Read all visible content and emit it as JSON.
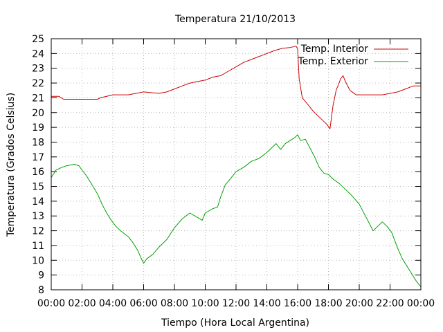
{
  "chart_data": {
    "type": "line",
    "title": "Temperatura 21/10/2013",
    "xlabel": "Tiempo (Hora Local Argentina)",
    "ylabel": "Temperatura (Grados Celsius)",
    "xlim": [
      0,
      24
    ],
    "ylim": [
      8,
      25
    ],
    "x_ticks": [
      "00:00",
      "02:00",
      "04:00",
      "06:00",
      "08:00",
      "10:00",
      "12:00",
      "14:00",
      "16:00",
      "18:00",
      "20:00",
      "22:00",
      "00:00"
    ],
    "y_ticks": [
      8,
      9,
      10,
      11,
      12,
      13,
      14,
      15,
      16,
      17,
      18,
      19,
      20,
      21,
      22,
      23,
      24,
      25
    ],
    "grid": true,
    "legend_position": "top-right",
    "series": [
      {
        "name": "Temp. Interior",
        "color": "#cc0000",
        "points": [
          [
            0.0,
            21.1
          ],
          [
            0.5,
            21.1
          ],
          [
            0.8,
            20.9
          ],
          [
            2.0,
            20.9
          ],
          [
            3.0,
            20.9
          ],
          [
            3.2,
            21.0
          ],
          [
            4.0,
            21.2
          ],
          [
            5.0,
            21.2
          ],
          [
            5.5,
            21.3
          ],
          [
            6.0,
            21.4
          ],
          [
            7.0,
            21.3
          ],
          [
            7.5,
            21.4
          ],
          [
            8.0,
            21.6
          ],
          [
            8.5,
            21.8
          ],
          [
            9.0,
            22.0
          ],
          [
            9.5,
            22.1
          ],
          [
            10.0,
            22.2
          ],
          [
            10.5,
            22.4
          ],
          [
            11.0,
            22.5
          ],
          [
            11.5,
            22.8
          ],
          [
            12.0,
            23.1
          ],
          [
            12.5,
            23.4
          ],
          [
            13.0,
            23.6
          ],
          [
            13.5,
            23.8
          ],
          [
            14.0,
            24.0
          ],
          [
            14.5,
            24.2
          ],
          [
            15.0,
            24.35
          ],
          [
            15.5,
            24.4
          ],
          [
            15.9,
            24.5
          ],
          [
            16.0,
            24.3
          ],
          [
            16.1,
            22.3
          ],
          [
            16.3,
            21.0
          ],
          [
            16.7,
            20.5
          ],
          [
            17.0,
            20.1
          ],
          [
            17.5,
            19.6
          ],
          [
            17.9,
            19.2
          ],
          [
            18.1,
            18.9
          ],
          [
            18.3,
            20.5
          ],
          [
            18.5,
            21.5
          ],
          [
            18.8,
            22.3
          ],
          [
            18.95,
            22.5
          ],
          [
            19.1,
            22.1
          ],
          [
            19.4,
            21.5
          ],
          [
            19.8,
            21.2
          ],
          [
            20.5,
            21.2
          ],
          [
            21.0,
            21.2
          ],
          [
            21.5,
            21.2
          ],
          [
            22.0,
            21.3
          ],
          [
            22.5,
            21.4
          ],
          [
            23.0,
            21.6
          ],
          [
            23.5,
            21.8
          ],
          [
            24.0,
            21.8
          ]
        ]
      },
      {
        "name": "Temp. Exterior",
        "color": "#00a000",
        "points": [
          [
            0.0,
            15.6
          ],
          [
            0.3,
            16.1
          ],
          [
            0.7,
            16.3
          ],
          [
            1.0,
            16.4
          ],
          [
            1.5,
            16.5
          ],
          [
            1.8,
            16.4
          ],
          [
            2.0,
            16.1
          ],
          [
            2.3,
            15.7
          ],
          [
            2.6,
            15.2
          ],
          [
            3.0,
            14.5
          ],
          [
            3.3,
            13.8
          ],
          [
            3.6,
            13.2
          ],
          [
            3.9,
            12.7
          ],
          [
            4.2,
            12.3
          ],
          [
            4.5,
            12.0
          ],
          [
            5.0,
            11.6
          ],
          [
            5.3,
            11.2
          ],
          [
            5.6,
            10.7
          ],
          [
            5.9,
            10.0
          ],
          [
            6.0,
            9.8
          ],
          [
            6.2,
            10.1
          ],
          [
            6.6,
            10.4
          ],
          [
            7.0,
            10.9
          ],
          [
            7.5,
            11.4
          ],
          [
            8.0,
            12.2
          ],
          [
            8.5,
            12.8
          ],
          [
            9.0,
            13.2
          ],
          [
            9.5,
            12.9
          ],
          [
            9.8,
            12.7
          ],
          [
            10.0,
            13.2
          ],
          [
            10.5,
            13.5
          ],
          [
            10.8,
            13.6
          ],
          [
            11.0,
            14.3
          ],
          [
            11.3,
            15.1
          ],
          [
            11.7,
            15.6
          ],
          [
            12.0,
            16.0
          ],
          [
            12.5,
            16.3
          ],
          [
            13.0,
            16.7
          ],
          [
            13.5,
            16.9
          ],
          [
            14.0,
            17.3
          ],
          [
            14.3,
            17.6
          ],
          [
            14.6,
            17.9
          ],
          [
            14.9,
            17.5
          ],
          [
            15.2,
            17.9
          ],
          [
            15.5,
            18.1
          ],
          [
            15.8,
            18.3
          ],
          [
            16.0,
            18.5
          ],
          [
            16.2,
            18.1
          ],
          [
            16.5,
            18.2
          ],
          [
            16.8,
            17.6
          ],
          [
            17.1,
            17.0
          ],
          [
            17.4,
            16.3
          ],
          [
            17.7,
            15.9
          ],
          [
            18.0,
            15.8
          ],
          [
            18.3,
            15.5
          ],
          [
            18.7,
            15.2
          ],
          [
            19.0,
            14.9
          ],
          [
            19.5,
            14.4
          ],
          [
            20.0,
            13.8
          ],
          [
            20.4,
            13.0
          ],
          [
            20.9,
            12.0
          ],
          [
            21.2,
            12.3
          ],
          [
            21.5,
            12.6
          ],
          [
            21.8,
            12.3
          ],
          [
            22.1,
            11.9
          ],
          [
            22.5,
            10.8
          ],
          [
            22.8,
            10.1
          ],
          [
            23.1,
            9.6
          ],
          [
            23.4,
            9.1
          ],
          [
            23.7,
            8.6
          ],
          [
            24.0,
            8.2
          ]
        ]
      }
    ]
  }
}
